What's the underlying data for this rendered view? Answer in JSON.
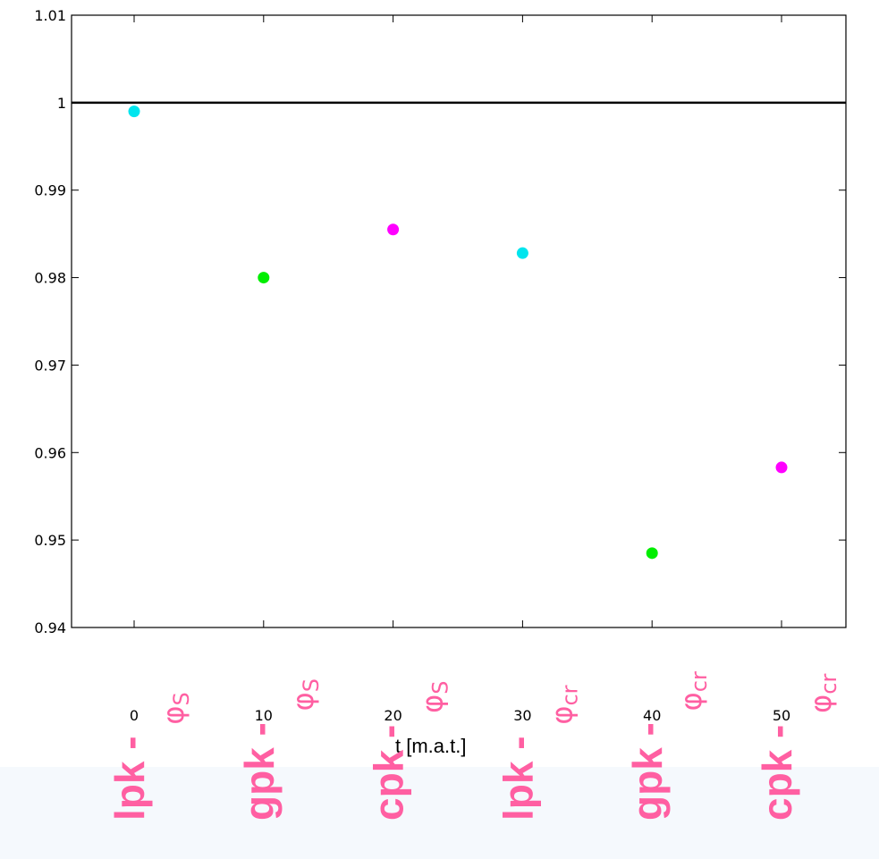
{
  "chart_data": {
    "type": "scatter",
    "xlabel": "t [m.a.t.]",
    "ylabel": "",
    "xlim": [
      0,
      50
    ],
    "ylim": [
      0.94,
      1.01
    ],
    "xticks": [
      0,
      10,
      20,
      30,
      40,
      50
    ],
    "yticks": [
      "0.94",
      "0.95",
      "0.96",
      "0.97",
      "0.98",
      "0.99",
      "1",
      "1.01"
    ],
    "reference_line": {
      "y": 1
    },
    "grid": false,
    "points": [
      {
        "x": 0,
        "y": 0.999,
        "color": "#00e5ee",
        "label": "lpk - ",
        "symbol": "φ",
        "subscript": "S"
      },
      {
        "x": 10,
        "y": 0.98,
        "color": "#00ee00",
        "label": "gpk - ",
        "symbol": "φ",
        "subscript": "S"
      },
      {
        "x": 20,
        "y": 0.9855,
        "color": "#ff00ff",
        "label": "cpk - ",
        "symbol": "φ",
        "subscript": "S"
      },
      {
        "x": 30,
        "y": 0.9828,
        "color": "#00e5ee",
        "label": "lpk - ",
        "symbol": "φ",
        "subscript": "cr"
      },
      {
        "x": 40,
        "y": 0.9485,
        "color": "#00ee00",
        "label": "gpk - ",
        "symbol": "φ",
        "subscript": "cr"
      },
      {
        "x": 50,
        "y": 0.9583,
        "color": "#ff00ff",
        "label": "cpk - ",
        "symbol": "φ",
        "subscript": "cr"
      }
    ],
    "category_label_color": "#ff5fa2",
    "axis_color": "#000000"
  }
}
